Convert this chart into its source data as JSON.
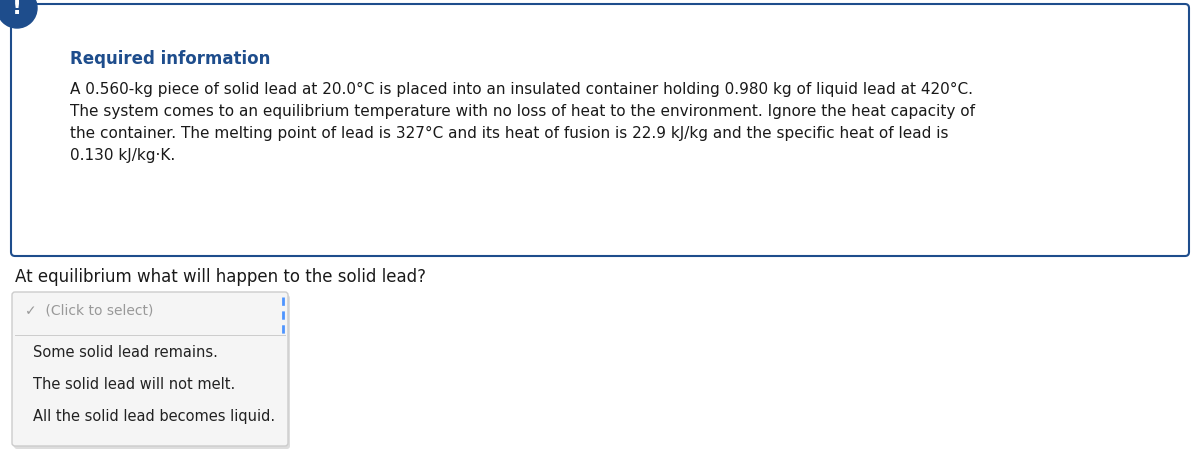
{
  "background_color": "#ffffff",
  "box_border_color": "#1e4d8c",
  "box_bg_color": "#ffffff",
  "icon_color": "#1e4d8c",
  "icon_text": "!",
  "icon_text_color": "#ffffff",
  "required_info_label": "Required information",
  "required_info_color": "#1e4d8c",
  "body_text_line1": "A 0.560-kg piece of solid lead at 20.0°C is placed into an insulated container holding 0.980 kg of liquid lead at 420°C.",
  "body_text_line2": "The system comes to an equilibrium temperature with no loss of heat to the environment. Ignore the heat capacity of",
  "body_text_line3": "the container. The melting point of lead is 327°C and its heat of fusion is 22.9 kJ/kg and the specific heat of lead is",
  "body_text_line4": "0.130 kJ/kg·K.",
  "body_text_color": "#1a1a1a",
  "question_text": "At equilibrium what will happen to the solid lead?",
  "question_color": "#1a1a1a",
  "dropdown_border_color": "#cccccc",
  "dropdown_bg_color": "#f5f5f5",
  "dropdown_shadow_color": "#dddddd",
  "dropdown_placeholder": "✓  (Click to select)",
  "dropdown_placeholder_color": "#999999",
  "dropdown_option1": "Some solid lead remains.",
  "dropdown_option2": "The solid lead will not melt.",
  "dropdown_option3": "All the solid lead becomes liquid.",
  "dropdown_text_color": "#222222",
  "dropdown_dashed_color": "#4d94ff"
}
